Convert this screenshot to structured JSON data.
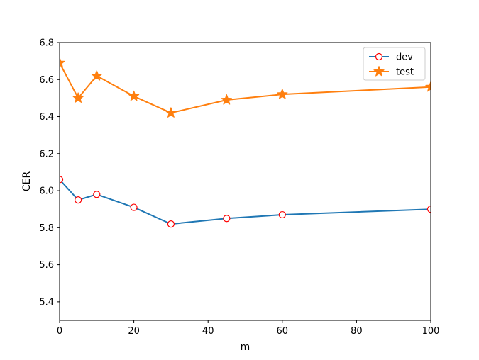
{
  "chart_data": {
    "type": "line",
    "xlabel": "m",
    "ylabel": "CER",
    "xlim": [
      0,
      100
    ],
    "ylim": [
      5.3,
      6.8
    ],
    "xticks": [
      0,
      20,
      40,
      60,
      80,
      100
    ],
    "yticks": [
      5.4,
      5.6,
      5.8,
      6.0,
      6.2,
      6.4,
      6.6,
      6.8
    ],
    "ytick_labels": [
      "5.4",
      "5.6",
      "5.8",
      "6.0",
      "6.2",
      "6.4",
      "6.6",
      "6.8"
    ],
    "grid": false,
    "legend_position": "top-right",
    "x": [
      0,
      5,
      10,
      20,
      30,
      45,
      60,
      100
    ],
    "series": [
      {
        "name": "dev",
        "values": [
          6.06,
          5.95,
          5.98,
          5.91,
          5.82,
          5.85,
          5.87,
          5.9
        ],
        "color": "#1f77b4",
        "marker": "circle",
        "marker_edge_color": "#ff0000",
        "marker_face_color": "#ffffff"
      },
      {
        "name": "test",
        "values": [
          6.69,
          6.5,
          6.62,
          6.51,
          6.42,
          6.49,
          6.52,
          6.56
        ],
        "color": "#ff7f0e",
        "marker": "star",
        "marker_edge_color": "#ff7f0e",
        "marker_face_color": "#ff7f0e"
      }
    ]
  }
}
